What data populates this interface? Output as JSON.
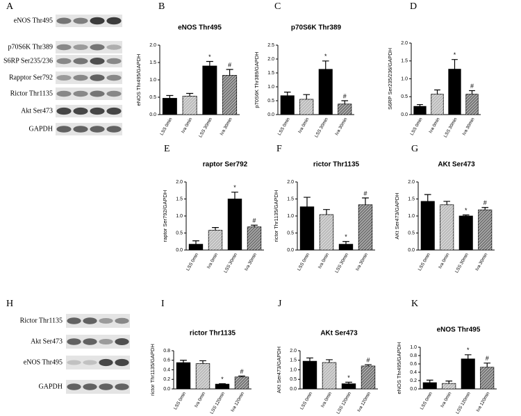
{
  "blots": [
    {
      "panel": "A",
      "labels": [
        "eNOS Thr495",
        "p70S6K Thr389",
        "S6RP Ser235/236",
        "Rapptor Ser792",
        "Rictor Thr1135",
        "Akt Ser473",
        "GAPDH"
      ]
    },
    {
      "panel": "H",
      "labels": [
        "Rictor Thr1135",
        "Akt Ser473",
        "eNOS Thr495",
        "GAPDH"
      ]
    }
  ],
  "chart_data": [
    {
      "type": "bar",
      "panel": "B",
      "title": "eNOS Thr495",
      "ylabel": "eNOS Thr495/GAPDH",
      "categories": [
        "LSS 0min",
        "Iva 0min",
        "LSS 30min",
        "Iva 30min"
      ],
      "values": [
        0.47,
        0.53,
        1.4,
        1.13
      ],
      "errors": [
        0.08,
        0.08,
        0.13,
        0.17
      ],
      "markers": [
        null,
        null,
        "*",
        "#"
      ],
      "colors": [
        "#000000",
        "#bbbbbb",
        "#000000",
        "#777777"
      ],
      "hatch": [
        false,
        true,
        false,
        true
      ],
      "ylim": [
        0,
        2
      ],
      "yticks": [
        {
          "value": 0,
          "label": "0.0"
        },
        {
          "value": 0.5,
          "label": "0.5"
        },
        {
          "value": 1,
          "label": "1.0"
        },
        {
          "value": 1.5,
          "label": "1.5"
        },
        {
          "value": 2,
          "label": "2.0"
        }
      ]
    },
    {
      "type": "bar",
      "panel": "C",
      "title": "p70S6K Thr389",
      "ylabel": "p70S6K Thr389/GAPDH",
      "categories": [
        "LSS 0min",
        "Iva 0min",
        "LSS 30min",
        "Iva 30min"
      ],
      "values": [
        0.68,
        0.55,
        1.63,
        0.38
      ],
      "errors": [
        0.13,
        0.17,
        0.3,
        0.12
      ],
      "markers": [
        null,
        null,
        "*",
        "#"
      ],
      "colors": [
        "#000000",
        "#bbbbbb",
        "#000000",
        "#777777"
      ],
      "hatch": [
        false,
        true,
        false,
        true
      ],
      "ylim": [
        0,
        2.5
      ],
      "yticks": [
        {
          "value": 0,
          "label": "0.0"
        },
        {
          "value": 0.5,
          "label": "0.5"
        },
        {
          "value": 1,
          "label": "1.0"
        },
        {
          "value": 1.5,
          "label": "1.5"
        },
        {
          "value": 2,
          "label": "2.0"
        },
        {
          "value": 2.5,
          "label": "2.5"
        }
      ]
    },
    {
      "type": "bar",
      "panel": "D",
      "ylabel": "S6RP Ser235/236/GAPDH",
      "categories": [
        "LSS 0min",
        "Iva 0min",
        "LSS 30min",
        "Iva 30min"
      ],
      "values": [
        0.23,
        0.57,
        1.27,
        0.57
      ],
      "errors": [
        0.05,
        0.12,
        0.27,
        0.1
      ],
      "markers": [
        null,
        null,
        "*",
        "#"
      ],
      "colors": [
        "#000000",
        "#bbbbbb",
        "#000000",
        "#777777"
      ],
      "hatch": [
        false,
        true,
        false,
        true
      ],
      "ylim": [
        0,
        2
      ],
      "yticks": [
        {
          "value": 0,
          "label": "0.0"
        },
        {
          "value": 0.5,
          "label": "0.5"
        },
        {
          "value": 1,
          "label": "1.0"
        },
        {
          "value": 1.5,
          "label": "1.5"
        },
        {
          "value": 2,
          "label": "2.0"
        }
      ]
    },
    {
      "type": "bar",
      "panel": "E",
      "title": "raptor Ser792",
      "ylabel": "raptor Ser792/GAPDH",
      "categories": [
        "LSS 0min",
        "Iva 0min",
        "LSS 30min",
        "Iva 30min"
      ],
      "values": [
        0.17,
        0.58,
        1.5,
        0.68
      ],
      "errors": [
        0.1,
        0.08,
        0.2,
        0.05
      ],
      "markers": [
        null,
        null,
        "*",
        "#"
      ],
      "colors": [
        "#000000",
        "#bbbbbb",
        "#000000",
        "#777777"
      ],
      "hatch": [
        false,
        true,
        false,
        true
      ],
      "ylim": [
        0,
        2
      ],
      "yticks": [
        {
          "value": 0,
          "label": "0.0"
        },
        {
          "value": 0.5,
          "label": "0.5"
        },
        {
          "value": 1,
          "label": "1.0"
        },
        {
          "value": 1.5,
          "label": "1.5"
        },
        {
          "value": 2,
          "label": "2.0"
        }
      ]
    },
    {
      "type": "bar",
      "panel": "F",
      "title": "rictor Thr1135",
      "ylabel": "rictor Thr1135/GAPDH",
      "categories": [
        "LSS 0min",
        "Iva 0min",
        "LSS 30min",
        "Iva 30min"
      ],
      "values": [
        1.27,
        1.04,
        0.17,
        1.33
      ],
      "errors": [
        0.28,
        0.15,
        0.08,
        0.2
      ],
      "markers": [
        null,
        null,
        "*",
        "#"
      ],
      "colors": [
        "#000000",
        "#bbbbbb",
        "#000000",
        "#777777"
      ],
      "hatch": [
        false,
        true,
        false,
        true
      ],
      "ylim": [
        0,
        2
      ],
      "yticks": [
        {
          "value": 0,
          "label": "0.0"
        },
        {
          "value": 0.5,
          "label": "0.5"
        },
        {
          "value": 1,
          "label": "1.0"
        },
        {
          "value": 1.5,
          "label": "1.5"
        },
        {
          "value": 2,
          "label": "2.0"
        }
      ]
    },
    {
      "type": "bar",
      "panel": "G",
      "title": "AKt Ser473",
      "ylabel": "AKt Ser473/GAPDH",
      "categories": [
        "LSS 0min",
        "Iva 0min",
        "LSS 30min",
        "Iva 30min"
      ],
      "values": [
        1.43,
        1.33,
        1.0,
        1.18
      ],
      "errors": [
        0.2,
        0.1,
        0.03,
        0.07
      ],
      "markers": [
        null,
        null,
        "*",
        "#"
      ],
      "colors": [
        "#000000",
        "#bbbbbb",
        "#000000",
        "#777777"
      ],
      "hatch": [
        false,
        true,
        false,
        true
      ],
      "ylim": [
        0,
        2
      ],
      "yticks": [
        {
          "value": 0,
          "label": "0.0"
        },
        {
          "value": 0.5,
          "label": "0.5"
        },
        {
          "value": 1,
          "label": "1.0"
        },
        {
          "value": 1.5,
          "label": "1.5"
        },
        {
          "value": 2,
          "label": "2.0"
        }
      ]
    },
    {
      "type": "bar",
      "panel": "I",
      "title": "rictor Thr1135",
      "ylabel": "rictor Thr1135/GAPDH",
      "categories": [
        "LSS 0min",
        "Iva 0min",
        "LSS 120min",
        "Iva 120min"
      ],
      "values": [
        0.55,
        0.53,
        0.1,
        0.25
      ],
      "errors": [
        0.05,
        0.06,
        0.01,
        0.02
      ],
      "markers": [
        null,
        null,
        "*",
        "#"
      ],
      "colors": [
        "#000000",
        "#bbbbbb",
        "#000000",
        "#777777"
      ],
      "hatch": [
        false,
        true,
        false,
        true
      ],
      "ylim": [
        0,
        0.8
      ],
      "yticks": [
        {
          "value": 0,
          "label": "0.0"
        },
        0.2,
        0.4,
        0.6,
        0.8
      ]
    },
    {
      "type": "bar",
      "panel": "J",
      "title": "AKt Ser473",
      "ylabel": "AKt Ser473/GAPDH",
      "categories": [
        "LSS 0min",
        "Iva 0min",
        "LSS 120min",
        "Iva 120min"
      ],
      "values": [
        1.45,
        1.38,
        0.27,
        1.2
      ],
      "errors": [
        0.17,
        0.15,
        0.08,
        0.07
      ],
      "markers": [
        null,
        null,
        "*",
        "#"
      ],
      "colors": [
        "#000000",
        "#bbbbbb",
        "#000000",
        "#777777"
      ],
      "hatch": [
        false,
        true,
        false,
        true
      ],
      "ylim": [
        0,
        2
      ],
      "yticks": [
        {
          "value": 0,
          "label": "0.0"
        },
        {
          "value": 0.5,
          "label": "0.5"
        },
        {
          "value": 1,
          "label": "1.0"
        },
        {
          "value": 1.5,
          "label": "1.5"
        },
        {
          "value": 2,
          "label": "2.0"
        }
      ]
    },
    {
      "type": "bar",
      "panel": "K",
      "title": "eNOS Thr495",
      "ylabel": "eNOS Thr495/GAPDH",
      "categories": [
        "LSS 0min",
        "Iva 0min",
        "LSS 120min",
        "Iva 120min"
      ],
      "values": [
        0.15,
        0.13,
        0.72,
        0.52
      ],
      "errors": [
        0.06,
        0.06,
        0.1,
        0.1
      ],
      "markers": [
        null,
        null,
        "*",
        "#"
      ],
      "colors": [
        "#000000",
        "#bbbbbb",
        "#000000",
        "#777777"
      ],
      "hatch": [
        false,
        true,
        false,
        true
      ],
      "ylim": [
        0,
        1
      ],
      "yticks": [
        {
          "value": 0,
          "label": "0.0"
        },
        0.2,
        0.4,
        0.6,
        0.8,
        {
          "value": 1,
          "label": "1.0"
        }
      ]
    }
  ]
}
